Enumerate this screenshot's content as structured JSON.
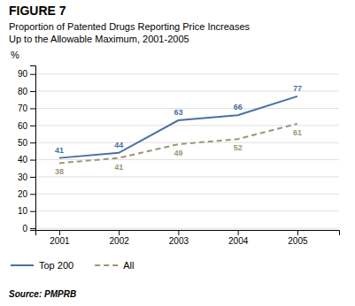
{
  "chart_data": {
    "type": "line",
    "title": "FIGURE 7",
    "subtitle": "Proportion of Patented Drugs Reporting Price Increases\nUp to the Allowable Maximum, 2001-2005",
    "ylabel": "%",
    "source": "Source: PMPRB",
    "x": [
      2001,
      2002,
      2003,
      2004,
      2005
    ],
    "xlim": [
      2000.6,
      2005.7
    ],
    "xticks": [
      2001,
      2002,
      2003,
      2004,
      2005
    ],
    "ylim": [
      -1,
      95
    ],
    "yticks": [
      0,
      10,
      20,
      30,
      40,
      50,
      60,
      70,
      80,
      90
    ],
    "grid": true,
    "legend": "bottom",
    "data_labels": true,
    "series": [
      {
        "name": "Top 200",
        "color": "#4a6fa5",
        "line_style": "solid",
        "values": [
          41,
          44,
          63,
          66,
          77
        ]
      },
      {
        "name": "All",
        "color": "#9e9478",
        "line_style": "dashed",
        "values": [
          38,
          41,
          49,
          52,
          61
        ]
      }
    ]
  }
}
